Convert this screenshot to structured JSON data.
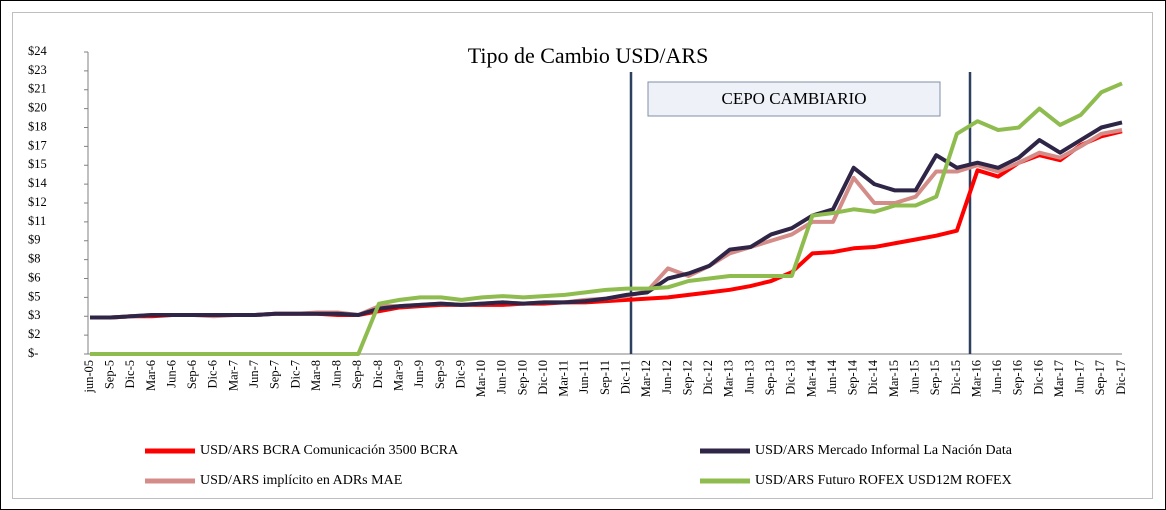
{
  "chart_data": {
    "type": "line",
    "title": "Tipo de Cambio USD/ARS",
    "annotation": "CEPO CAMBIARIO",
    "categories": [
      "jun-05",
      "Sep-5",
      "Dic-5",
      "Mar-6",
      "Jun-6",
      "Sep-6",
      "Dic-6",
      "Mar-7",
      "Jun-7",
      "Sep-7",
      "Dic-7",
      "Mar-8",
      "Jun-8",
      "Sep-8",
      "Dic-8",
      "Mar-9",
      "Jun-9",
      "Sep-9",
      "Dic-9",
      "Mar-10",
      "Jun-10",
      "Sep-10",
      "Dic-10",
      "Mar-11",
      "Jun-11",
      "Sep-11",
      "Dic-11",
      "Mar-12",
      "Jun-12",
      "Sep-12",
      "Dic-12",
      "Mar-13",
      "Jun-13",
      "Sep-13",
      "Dic-13",
      "Mar-14",
      "Jun-14",
      "Sep-14",
      "Dic-14",
      "Mar-15",
      "Jun-15",
      "Sep-15",
      "Dic-15",
      "Mar-16",
      "Jun-16",
      "Sep-16",
      "Dic-16",
      "Mar-17",
      "Jun-17",
      "Sep-17",
      "Dic-17"
    ],
    "series": [
      {
        "name": "USD/ARS BCRA Comunicación 3500 BCRA",
        "color": "#ff0000",
        "values": [
          2.9,
          2.9,
          3.0,
          3.0,
          3.1,
          3.1,
          3.1,
          3.1,
          3.1,
          3.2,
          3.2,
          3.2,
          3.1,
          3.1,
          3.4,
          3.7,
          3.8,
          3.9,
          3.9,
          3.9,
          3.9,
          4.0,
          4.0,
          4.1,
          4.1,
          4.2,
          4.3,
          4.4,
          4.5,
          4.7,
          4.9,
          5.1,
          5.4,
          5.8,
          6.5,
          8.0,
          8.1,
          8.4,
          8.5,
          8.8,
          9.1,
          9.4,
          9.8,
          14.6,
          14.1,
          15.2,
          15.8,
          15.4,
          16.6,
          17.3,
          17.7
        ]
      },
      {
        "name": "USD/ARS Mercado Informal La Nación Data",
        "color": "#2e2547",
        "values": [
          2.9,
          2.9,
          3.0,
          3.1,
          3.1,
          3.1,
          3.1,
          3.1,
          3.1,
          3.2,
          3.2,
          3.2,
          3.2,
          3.1,
          3.6,
          3.8,
          3.9,
          4.0,
          3.9,
          4.0,
          4.1,
          4.0,
          4.1,
          4.1,
          4.2,
          4.4,
          4.7,
          4.9,
          6.0,
          6.4,
          7.0,
          8.3,
          8.5,
          9.5,
          10.0,
          11.0,
          11.5,
          14.8,
          13.5,
          13.0,
          13.0,
          15.8,
          14.8,
          15.2,
          14.8,
          15.6,
          17.0,
          16.0,
          17.0,
          18.0,
          18.4
        ]
      },
      {
        "name": "USD/ARS implícito en ADRs MAE",
        "color": "#d48c89",
        "values": [
          2.9,
          2.9,
          3.0,
          3.1,
          3.1,
          3.1,
          3.0,
          3.1,
          3.1,
          3.2,
          3.2,
          3.3,
          3.3,
          3.1,
          3.8,
          3.8,
          3.9,
          4.0,
          3.9,
          4.0,
          4.1,
          4.0,
          4.1,
          4.1,
          4.3,
          4.4,
          4.6,
          5.0,
          6.8,
          6.2,
          7.0,
          8.0,
          8.5,
          9.0,
          9.5,
          10.5,
          10.5,
          14.0,
          12.0,
          12.0,
          12.5,
          14.5,
          14.5,
          15.0,
          14.5,
          15.2,
          16.0,
          15.6,
          16.5,
          17.5,
          17.8
        ]
      },
      {
        "name": "USD/ARS Futuro ROFEX USD12M ROFEX",
        "color": "#8fbc4f",
        "values": [
          0,
          0,
          0,
          0,
          0,
          0,
          0,
          0,
          0,
          0,
          0,
          0,
          0,
          0,
          4.0,
          4.3,
          4.5,
          4.5,
          4.3,
          4.5,
          4.6,
          4.5,
          4.6,
          4.7,
          4.9,
          5.1,
          5.2,
          5.2,
          5.3,
          5.8,
          6.0,
          6.2,
          6.2,
          6.2,
          6.2,
          11.0,
          11.2,
          11.5,
          11.3,
          11.8,
          11.8,
          12.5,
          17.5,
          18.5,
          17.8,
          18.0,
          19.5,
          18.2,
          19.0,
          20.8,
          21.5
        ]
      }
    ],
    "ylim": [
      0,
      24
    ],
    "yticks": [
      {
        "value": 0,
        "label": "$-"
      },
      {
        "value": 1.5,
        "label": "$2"
      },
      {
        "value": 3,
        "label": "$3"
      },
      {
        "value": 4.5,
        "label": "$5"
      },
      {
        "value": 6,
        "label": "$6"
      },
      {
        "value": 7.5,
        "label": "$8"
      },
      {
        "value": 9,
        "label": "$9"
      },
      {
        "value": 10.5,
        "label": "$11"
      },
      {
        "value": 12,
        "label": "$12"
      },
      {
        "value": 13.5,
        "label": "$14"
      },
      {
        "value": 15,
        "label": "$15"
      },
      {
        "value": 16.5,
        "label": "$17"
      },
      {
        "value": 18,
        "label": "$18"
      },
      {
        "value": 19.5,
        "label": "$20"
      },
      {
        "value": 21,
        "label": "$21"
      },
      {
        "value": 22.5,
        "label": "$23"
      },
      {
        "value": 24,
        "label": "$24"
      }
    ],
    "grid": false,
    "legend": "bottom"
  }
}
